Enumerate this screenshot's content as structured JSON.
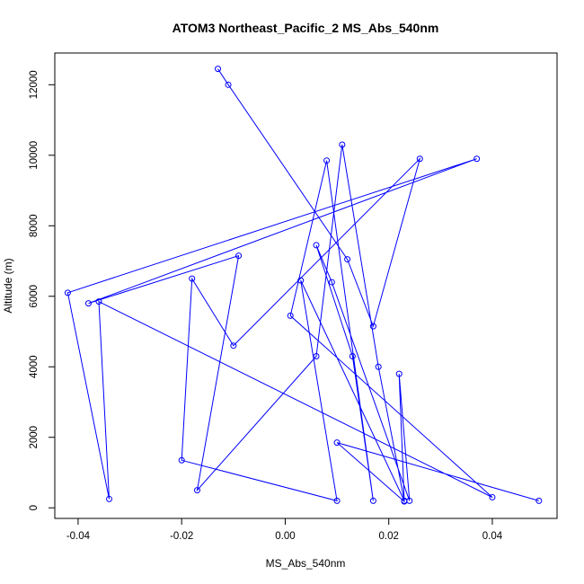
{
  "chart_data": {
    "type": "line",
    "title": "ATOM3 Northeast_Pacific_2 MS_Abs_540nm",
    "xlabel": "MS_Abs_540nm",
    "ylabel": "Altitude (m)",
    "xlim": [
      -0.0445,
      0.0525
    ],
    "ylim": [
      -300,
      12900
    ],
    "xticks": [
      -0.04,
      -0.02,
      0.0,
      0.02,
      0.04
    ],
    "xtick_labels": [
      "-0.04",
      "-0.02",
      "0.00",
      "0.02",
      "0.04"
    ],
    "yticks": [
      0,
      2000,
      4000,
      6000,
      8000,
      10000,
      12000
    ],
    "ytick_labels": [
      "0",
      "2000",
      "4000",
      "6000",
      "8000",
      "10000",
      "12000"
    ],
    "grid": false,
    "series_color": "#0000ff",
    "markers": "open-circle",
    "x": [
      -0.013,
      -0.011,
      0.012,
      0.017,
      0.026,
      -0.01,
      -0.018,
      -0.02,
      0.01,
      0.003,
      0.023,
      0.018,
      0.011,
      0.006,
      -0.017,
      -0.009,
      -0.038,
      0.037,
      -0.042,
      -0.034,
      -0.036,
      0.04,
      0.001,
      0.008,
      0.017,
      0.013,
      0.006,
      0.009,
      0.024,
      0.022,
      0.023,
      0.01,
      0.049
    ],
    "y": [
      12450,
      12000,
      7050,
      5150,
      9900,
      4600,
      6500,
      1350,
      200,
      6450,
      200,
      4000,
      10300,
      4300,
      500,
      7150,
      5800,
      9900,
      6100,
      250,
      5850,
      300,
      5450,
      9850,
      200,
      4300,
      7450,
      6400,
      200,
      3800,
      180,
      1850,
      200
    ]
  }
}
